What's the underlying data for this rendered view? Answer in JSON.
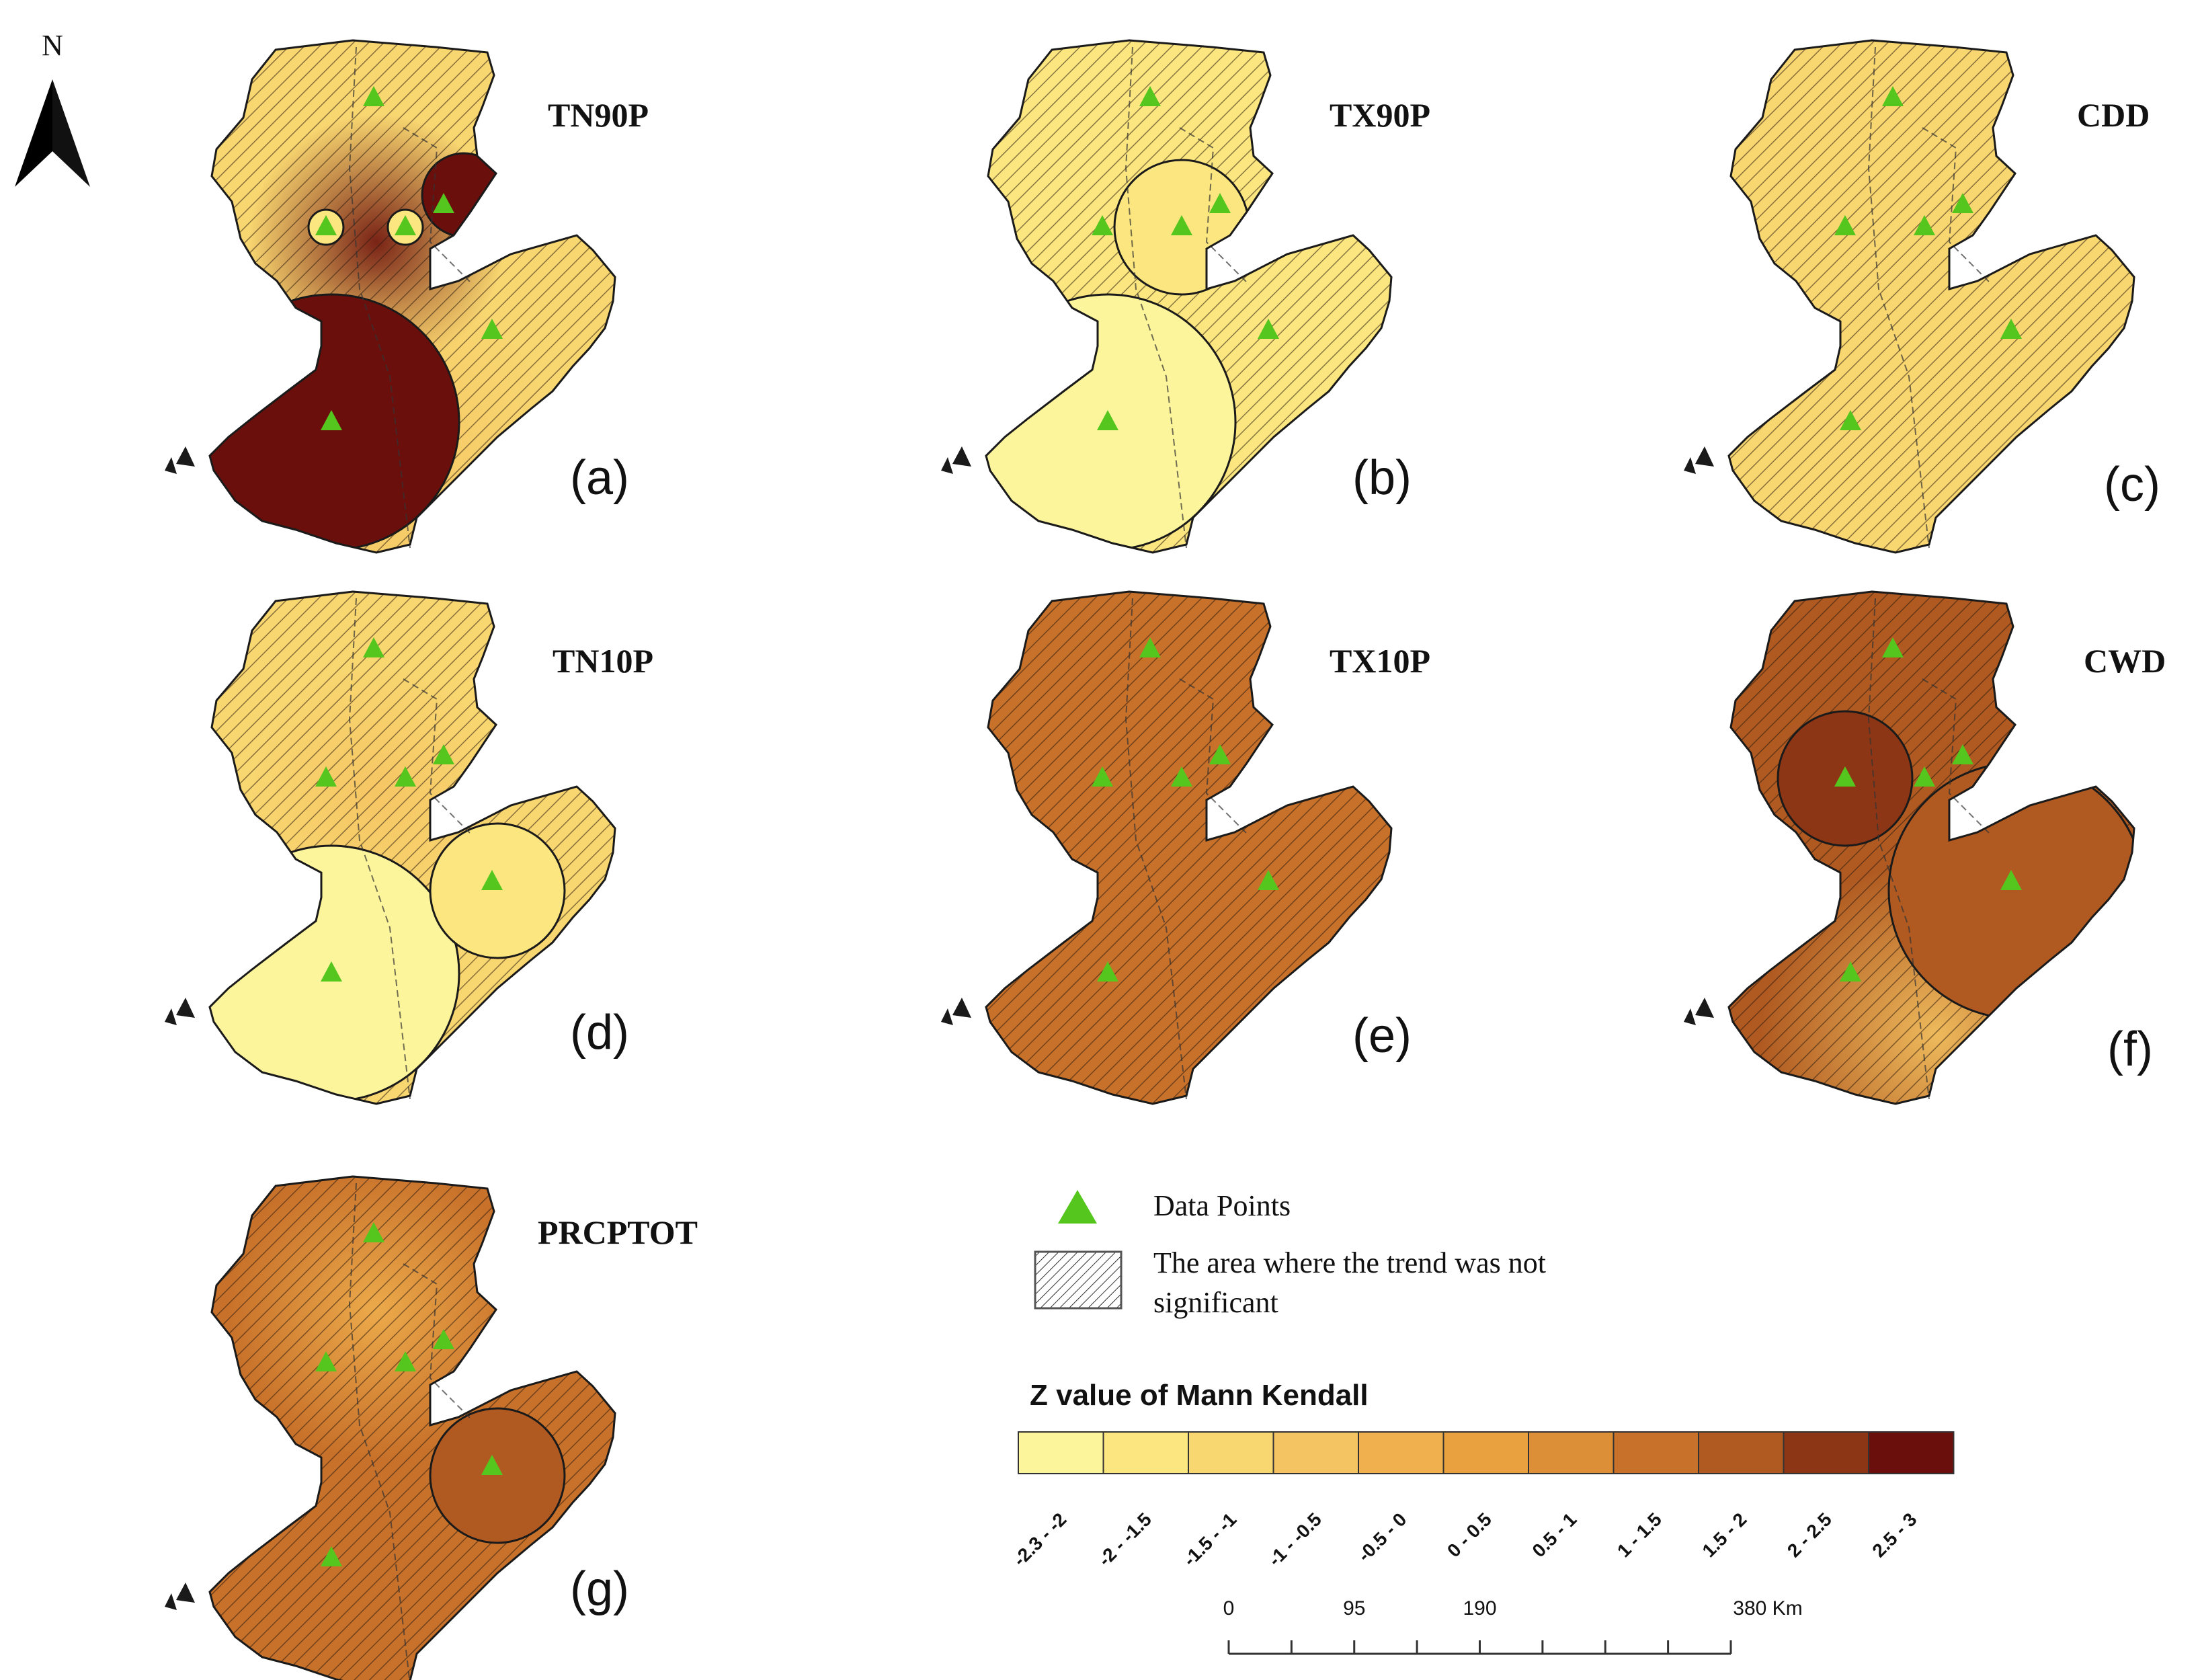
{
  "north_label": "N",
  "panels": [
    {
      "id": "a",
      "title": "TN90P",
      "letter": "(a)",
      "base_class": 2,
      "bumps": [
        {
          "cls": 10,
          "r": "m"
        },
        {
          "cls": 3,
          "r": "l"
        }
      ],
      "sig": [
        {
          "site": "SW",
          "cls": 10,
          "size": "L"
        },
        {
          "site": "NE",
          "cls": 10,
          "size": "S"
        },
        {
          "site": "W",
          "cls": 1,
          "size": "XS"
        },
        {
          "site": "C",
          "cls": 1,
          "size": "XS"
        }
      ]
    },
    {
      "id": "b",
      "title": "TX90P",
      "letter": "(b)",
      "base_class": 1,
      "bumps": [],
      "sig": [
        {
          "site": "SW",
          "cls": 0,
          "size": "L"
        },
        {
          "site": "C",
          "cls": 1,
          "size": "M"
        }
      ]
    },
    {
      "id": "c",
      "title": "CDD",
      "letter": "(c)",
      "base_class": 2,
      "bumps": [],
      "sig": []
    },
    {
      "id": "d",
      "title": "TN10P",
      "letter": "(d)",
      "base_class": 2,
      "bumps": [
        {
          "cls": 3,
          "r": "m"
        }
      ],
      "sig": [
        {
          "site": "SW",
          "cls": 0,
          "size": "L"
        },
        {
          "site": "E",
          "cls": 1,
          "size": "M"
        }
      ]
    },
    {
      "id": "e",
      "title": "TX10P",
      "letter": "(e)",
      "base_class": 7,
      "bumps": [],
      "sig": []
    },
    {
      "id": "f",
      "title": "CWD",
      "letter": "(f)",
      "base_class": 8,
      "bumps": [
        {
          "cls": 3,
          "r": "sw"
        }
      ],
      "sig": [
        {
          "site": "W",
          "cls": 9,
          "size": "M"
        },
        {
          "site": "E",
          "cls": 8,
          "size": "L"
        }
      ]
    },
    {
      "id": "g",
      "title": "PRCPTOT",
      "letter": "(g)",
      "base_class": 7,
      "bumps": [
        {
          "cls": 4,
          "r": "n"
        }
      ],
      "sig": [
        {
          "site": "E",
          "cls": 8,
          "size": "M"
        }
      ]
    }
  ],
  "legend": {
    "data_points_label": "Data Points",
    "not_significant_label_line1": "The area where the trend was not",
    "not_significant_label_line2": "significant",
    "colorbar_title": "Z value of Mann Kendall",
    "classes": [
      {
        "label": "-2.3 - -2",
        "color": "#fdf59b"
      },
      {
        "label": "-2 - -1.5",
        "color": "#fbe67f"
      },
      {
        "label": "-1.5 - -1",
        "color": "#f8d670"
      },
      {
        "label": "-1 - -0.5",
        "color": "#f5c462"
      },
      {
        "label": "-0.5 - 0",
        "color": "#f0b04e"
      },
      {
        "label": "0 - 0.5",
        "color": "#e9a03f"
      },
      {
        "label": "0.5 - 1",
        "color": "#dc8f36"
      },
      {
        "label": "1 - 1.5",
        "color": "#c8712a"
      },
      {
        "label": "1.5 - 2",
        "color": "#b05a21"
      },
      {
        "label": "2 - 2.5",
        "color": "#8d3615"
      },
      {
        "label": "2.5 - 3",
        "color": "#6b0f0c"
      }
    ],
    "scale": {
      "labels": [
        "0",
        "95",
        "190",
        "380 Km"
      ],
      "km": [
        0,
        95,
        190,
        380
      ]
    }
  },
  "colors": {
    "marker": "#55c61e",
    "hatch": "#2a1a0e",
    "outline": "#1a1a1a"
  }
}
